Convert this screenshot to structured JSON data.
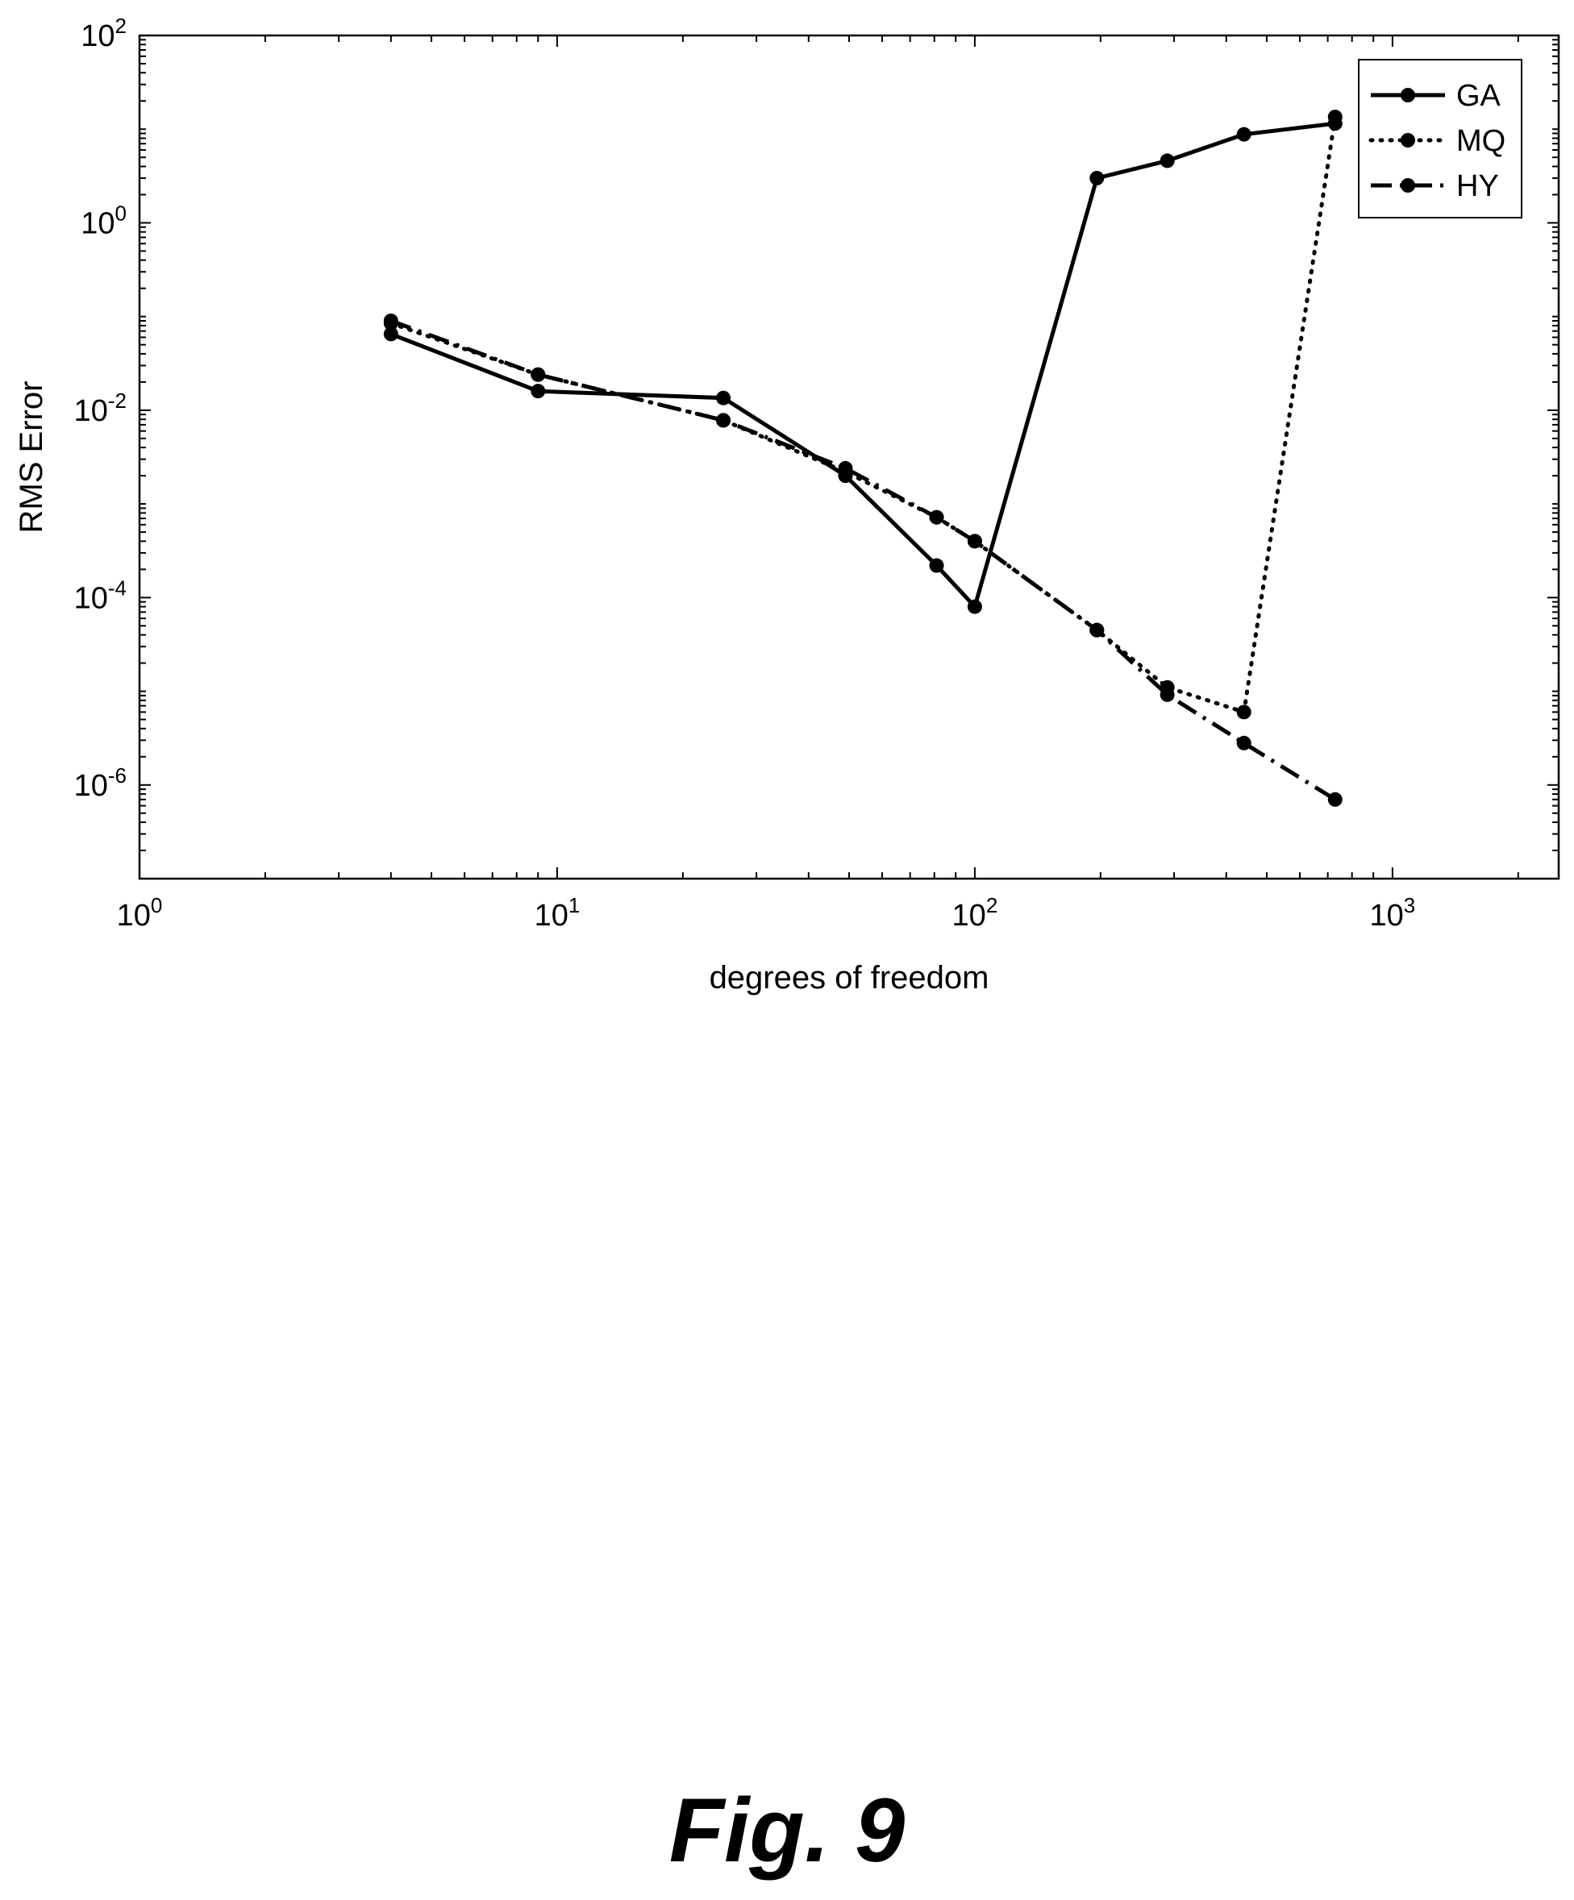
{
  "chart_data": {
    "type": "line",
    "xscale": "log",
    "yscale": "log",
    "xlabel": "degrees of freedom",
    "ylabel": "RMS Error",
    "xlim": [
      1,
      2500
    ],
    "ylim": [
      1e-07,
      100
    ],
    "xticks": [
      {
        "base": "10",
        "exp": "0",
        "value": 1
      },
      {
        "base": "10",
        "exp": "1",
        "value": 10
      },
      {
        "base": "10",
        "exp": "2",
        "value": 100
      },
      {
        "base": "10",
        "exp": "3",
        "value": 1000
      }
    ],
    "yticks": [
      {
        "base": "10",
        "exp": "2",
        "value": 100
      },
      {
        "base": "10",
        "exp": "0",
        "value": 1
      },
      {
        "base": "10",
        "exp": "-2",
        "value": 0.01
      },
      {
        "base": "10",
        "exp": "-4",
        "value": 0.0001
      },
      {
        "base": "10",
        "exp": "-6",
        "value": 1e-06
      }
    ],
    "legend_position": "top-right",
    "series": [
      {
        "name": "GA",
        "style": "solid",
        "x": [
          4,
          9,
          25,
          49,
          81,
          100,
          196,
          289,
          441,
          729
        ],
        "y": [
          0.065,
          0.016,
          0.0135,
          0.002,
          0.00022,
          8e-05,
          3.0,
          4.6,
          8.8,
          11.5
        ]
      },
      {
        "name": "MQ",
        "style": "dotted",
        "x": [
          4,
          9,
          25,
          49,
          81,
          100,
          196,
          289,
          441,
          729
        ],
        "y": [
          0.085,
          0.024,
          0.0078,
          0.0022,
          0.00072,
          0.0004,
          4.5e-05,
          1.1e-05,
          6e-06,
          13.5
        ]
      },
      {
        "name": "HY",
        "style": "dashdot",
        "x": [
          4,
          9,
          25,
          49,
          81,
          100,
          196,
          289,
          441,
          729
        ],
        "y": [
          0.09,
          0.024,
          0.0078,
          0.0024,
          0.00072,
          0.0004,
          4.5e-05,
          9.2e-06,
          2.8e-06,
          7e-07
        ]
      }
    ]
  },
  "caption": "Fig. 9"
}
